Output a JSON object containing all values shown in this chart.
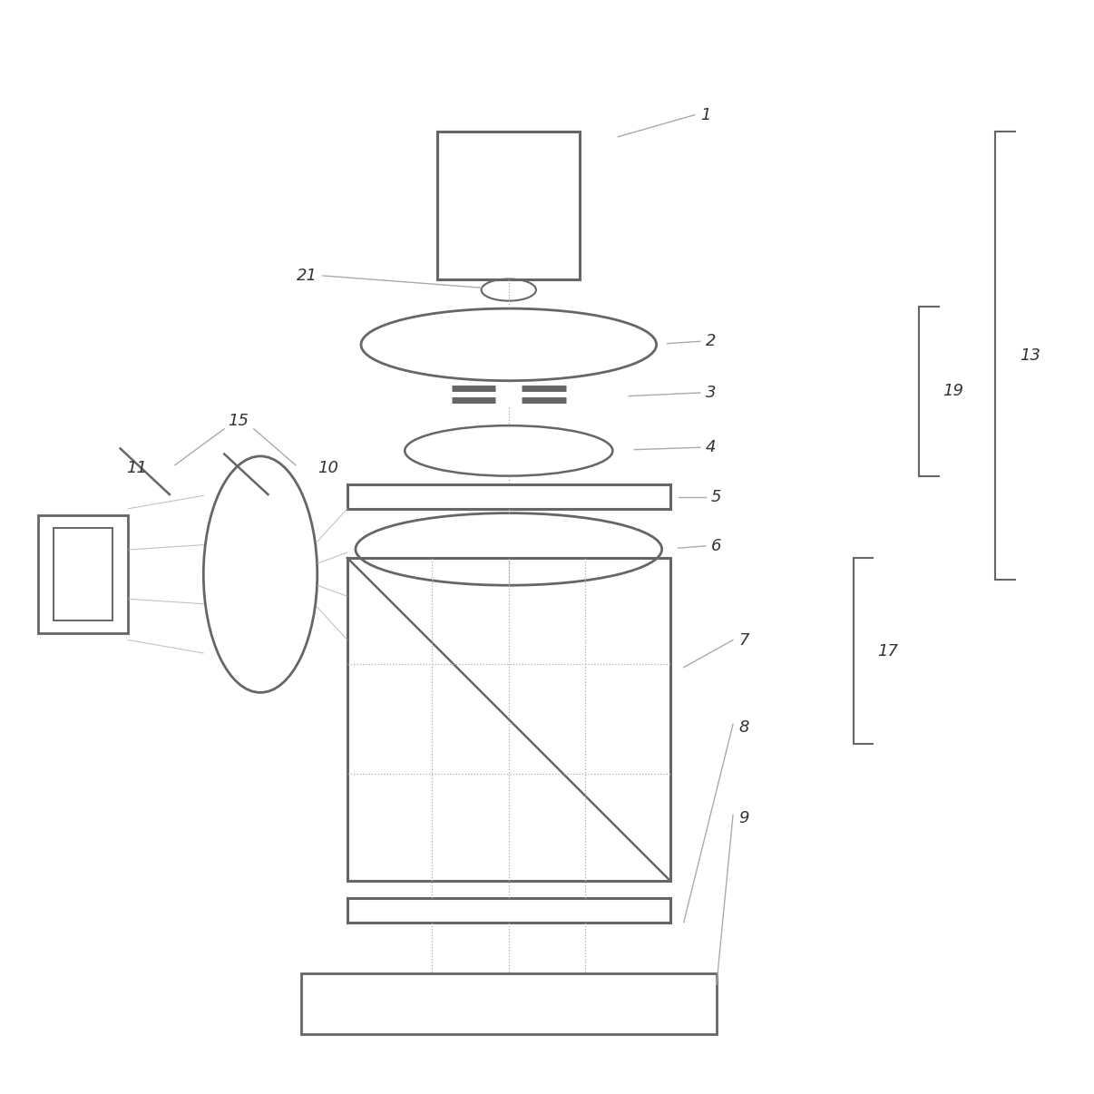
{
  "bg_color": "#ffffff",
  "line_color": "#aaaaaa",
  "dark_line": "#666666",
  "fig_size": [
    12.06,
    12.06
  ],
  "dpi": 100
}
